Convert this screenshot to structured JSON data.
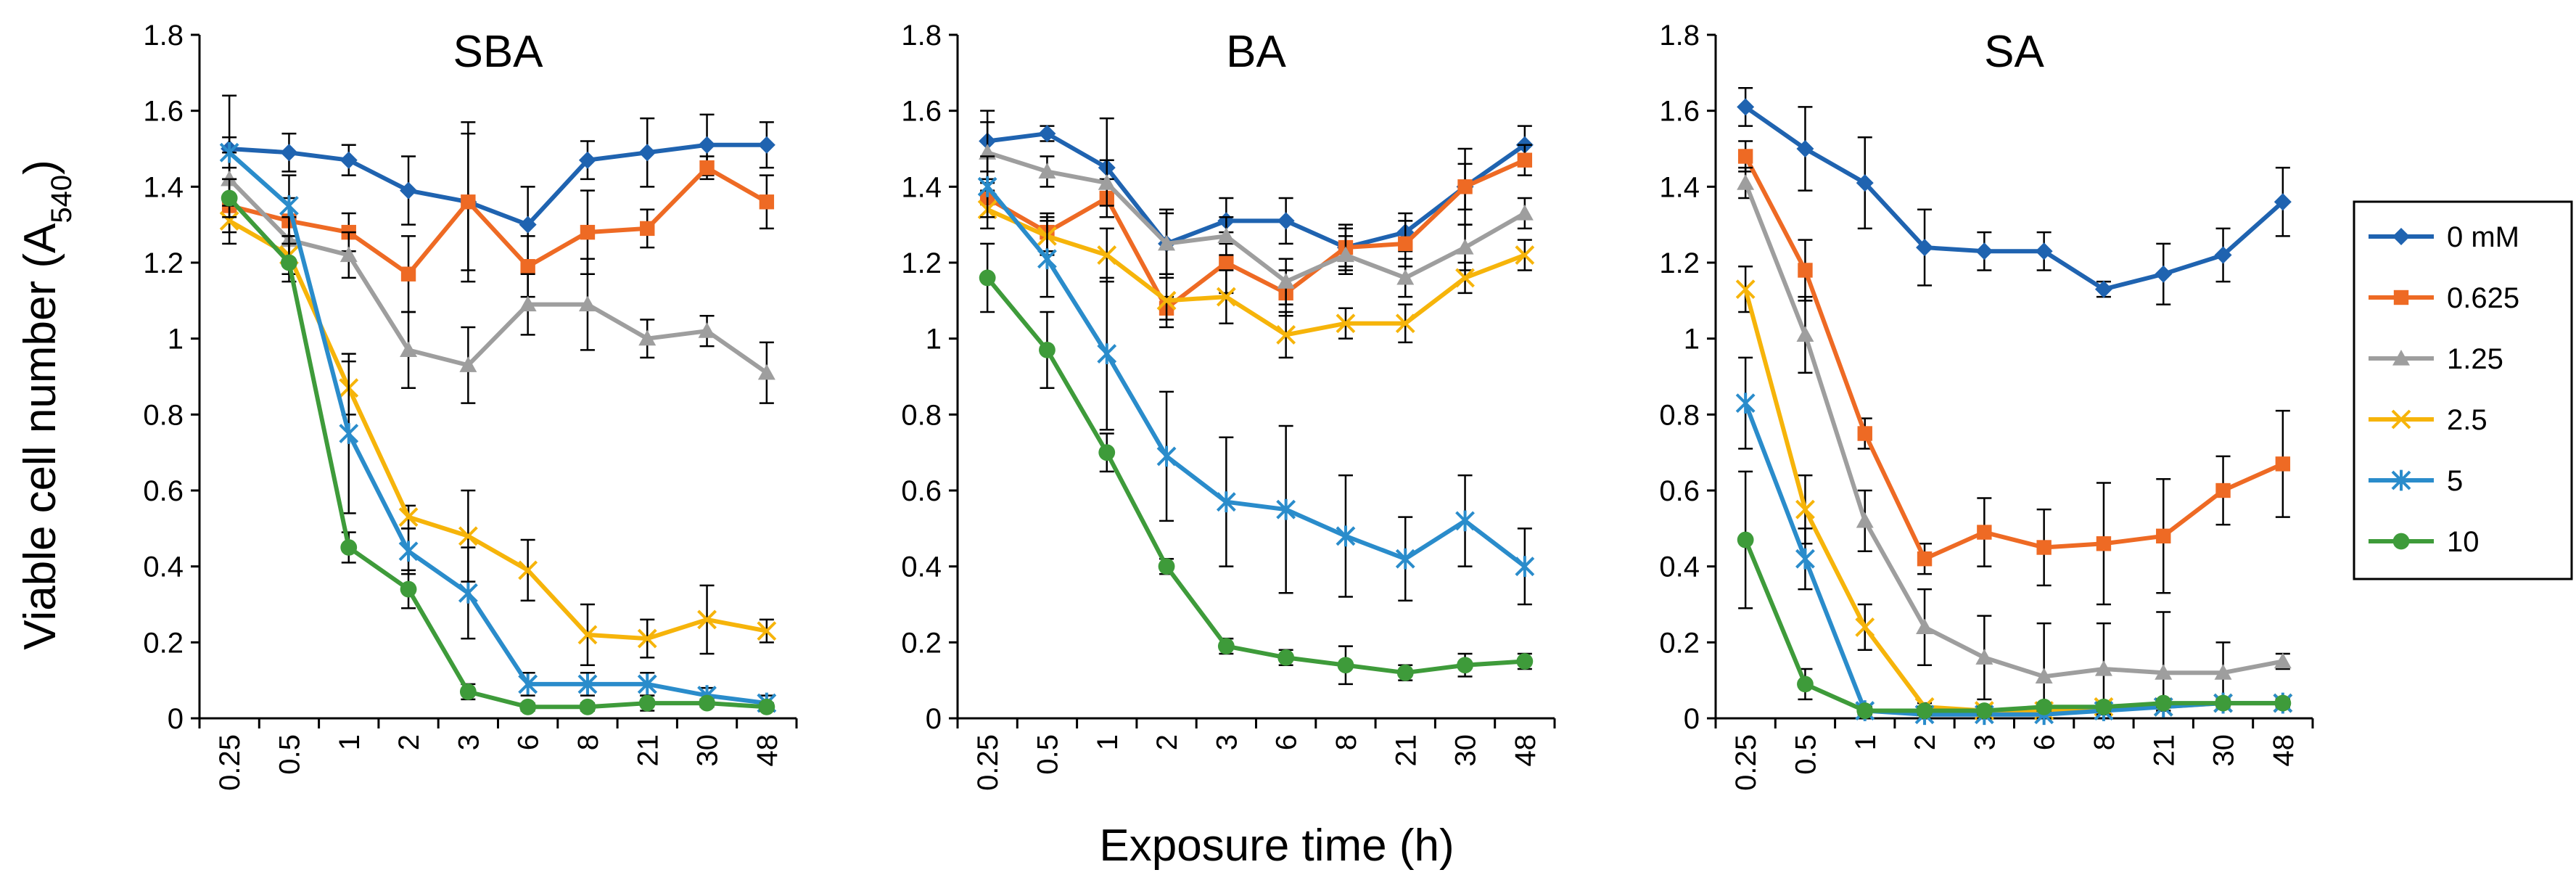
{
  "figure": {
    "xlabel": "Exposure time (h)",
    "ylabel_main": "Viable cell number (A",
    "ylabel_sub": "540",
    "ylabel_close": ")"
  },
  "legend": {
    "placement": "right",
    "entries": [
      {
        "label": "0 mM",
        "color": "#1F63B0",
        "marker": "diamond"
      },
      {
        "label": "0.625",
        "color": "#EE6A24",
        "marker": "square"
      },
      {
        "label": "1.25",
        "color": "#9E9E9E",
        "marker": "triangle"
      },
      {
        "label": "2.5",
        "color": "#F6B40A",
        "marker": "x"
      },
      {
        "label": "5",
        "color": "#2A8CCB",
        "marker": "star"
      },
      {
        "label": "10",
        "color": "#3E9B3A",
        "marker": "circle"
      }
    ]
  },
  "chart_data": [
    {
      "type": "line",
      "title": "SBA",
      "categories": [
        "0.25",
        "0.5",
        "1",
        "2",
        "3",
        "6",
        "8",
        "21",
        "30",
        "48"
      ],
      "xlabel": "Exposure time (h)",
      "ylabel": "Viable cell number (A540)",
      "ylim": [
        0,
        1.8
      ],
      "yticks": [
        "0",
        "0.2",
        "0.4",
        "0.6",
        "0.8",
        "1",
        "1.2",
        "1.4",
        "1.6",
        "1.8"
      ],
      "series": [
        {
          "name": "0 mM",
          "values": [
            1.5,
            1.49,
            1.47,
            1.39,
            1.36,
            1.3,
            1.47,
            1.49,
            1.51,
            1.51
          ],
          "errors": [
            0.14,
            0.05,
            0.04,
            0.09,
            0.21,
            0.1,
            0.05,
            0.09,
            0.08,
            0.06
          ]
        },
        {
          "name": "0.625",
          "values": [
            1.35,
            1.31,
            1.28,
            1.17,
            1.36,
            1.19,
            1.28,
            1.29,
            1.45,
            1.36
          ],
          "errors": [
            0.07,
            0.06,
            0.05,
            0.1,
            0.18,
            0.08,
            0.11,
            0.05,
            0.03,
            0.07
          ]
        },
        {
          "name": "1.25",
          "values": [
            1.42,
            1.26,
            1.22,
            0.97,
            0.93,
            1.09,
            1.09,
            1.0,
            1.02,
            0.91
          ],
          "errors": [
            0.07,
            0.06,
            0.06,
            0.1,
            0.1,
            0.08,
            0.12,
            0.05,
            0.04,
            0.08
          ]
        },
        {
          "name": "2.5",
          "values": [
            1.31,
            1.22,
            0.87,
            0.53,
            0.48,
            0.39,
            0.22,
            0.21,
            0.26,
            0.23
          ],
          "errors": [
            0.06,
            0.05,
            0.07,
            0.03,
            0.12,
            0.08,
            0.08,
            0.05,
            0.09,
            0.03
          ]
        },
        {
          "name": "5",
          "values": [
            1.49,
            1.35,
            0.75,
            0.44,
            0.33,
            0.09,
            0.09,
            0.09,
            0.06,
            0.04
          ],
          "errors": [
            0.04,
            0.08,
            0.21,
            0.06,
            0.12,
            0.03,
            0.03,
            0.03,
            0.02,
            0.02
          ]
        },
        {
          "name": "10",
          "values": [
            1.37,
            1.2,
            0.45,
            0.34,
            0.07,
            0.03,
            0.03,
            0.04,
            0.04,
            0.03
          ],
          "errors": [
            0.05,
            0.05,
            0.04,
            0.05,
            0.02,
            0.01,
            0.01,
            0.02,
            0.01,
            0.01
          ]
        }
      ]
    },
    {
      "type": "line",
      "title": "BA",
      "categories": [
        "0.25",
        "0.5",
        "1",
        "2",
        "3",
        "6",
        "8",
        "21",
        "30",
        "48"
      ],
      "xlabel": "Exposure time (h)",
      "ylabel": "",
      "ylim": [
        0,
        1.8
      ],
      "yticks": [
        "0",
        "0.2",
        "0.4",
        "0.6",
        "0.8",
        "1",
        "1.2",
        "1.4",
        "1.6",
        "1.8"
      ],
      "series": [
        {
          "name": "0 mM",
          "values": [
            1.52,
            1.54,
            1.45,
            1.25,
            1.31,
            1.31,
            1.24,
            1.28,
            1.4,
            1.51
          ],
          "errors": [
            0.08,
            0.02,
            0.13,
            0.09,
            0.06,
            0.06,
            0.05,
            0.05,
            0.1,
            0.05
          ]
        },
        {
          "name": "0.625",
          "values": [
            1.37,
            1.28,
            1.37,
            1.08,
            1.2,
            1.12,
            1.24,
            1.25,
            1.4,
            1.47
          ],
          "errors": [
            0.05,
            0.05,
            0.05,
            0.03,
            0.08,
            0.06,
            0.06,
            0.06,
            0.06,
            0.04
          ]
        },
        {
          "name": "1.25",
          "values": [
            1.49,
            1.44,
            1.41,
            1.25,
            1.27,
            1.15,
            1.22,
            1.16,
            1.24,
            1.33
          ],
          "errors": [
            0.08,
            0.04,
            0.06,
            0.08,
            0.05,
            0.06,
            0.05,
            0.05,
            0.06,
            0.04
          ]
        },
        {
          "name": "2.5",
          "values": [
            1.34,
            1.27,
            1.22,
            1.1,
            1.11,
            1.01,
            1.04,
            1.04,
            1.16,
            1.22
          ],
          "errors": [
            0.05,
            0.05,
            0.07,
            0.07,
            0.07,
            0.06,
            0.04,
            0.05,
            0.04,
            0.04
          ]
        },
        {
          "name": "5",
          "values": [
            1.4,
            1.21,
            0.96,
            0.69,
            0.57,
            0.55,
            0.48,
            0.42,
            0.52,
            0.4
          ],
          "errors": [
            0.08,
            0.1,
            0.2,
            0.17,
            0.17,
            0.22,
            0.16,
            0.11,
            0.12,
            0.1
          ]
        },
        {
          "name": "10",
          "values": [
            1.16,
            0.97,
            0.7,
            0.4,
            0.19,
            0.16,
            0.14,
            0.12,
            0.14,
            0.15
          ],
          "errors": [
            0.09,
            0.1,
            0.05,
            0.02,
            0.02,
            0.02,
            0.05,
            0.02,
            0.03,
            0.02
          ]
        }
      ]
    },
    {
      "type": "line",
      "title": "SA",
      "categories": [
        "0.25",
        "0.5",
        "1",
        "2",
        "3",
        "6",
        "8",
        "21",
        "30",
        "48"
      ],
      "xlabel": "Exposure time (h)",
      "ylabel": "",
      "ylim": [
        0,
        1.8
      ],
      "yticks": [
        "0",
        "0.2",
        "0.4",
        "0.6",
        "0.8",
        "1",
        "1.2",
        "1.4",
        "1.6",
        "1.8"
      ],
      "series": [
        {
          "name": "0 mM",
          "values": [
            1.61,
            1.5,
            1.41,
            1.24,
            1.23,
            1.23,
            1.13,
            1.17,
            1.22,
            1.36
          ],
          "errors": [
            0.05,
            0.11,
            0.12,
            0.1,
            0.05,
            0.05,
            0.02,
            0.08,
            0.07,
            0.09
          ]
        },
        {
          "name": "0.625",
          "values": [
            1.48,
            1.18,
            0.75,
            0.42,
            0.49,
            0.45,
            0.46,
            0.48,
            0.6,
            0.67
          ],
          "errors": [
            0.04,
            0.08,
            0.04,
            0.04,
            0.09,
            0.1,
            0.16,
            0.15,
            0.09,
            0.14
          ]
        },
        {
          "name": "1.25",
          "values": [
            1.41,
            1.01,
            0.52,
            0.24,
            0.16,
            0.11,
            0.13,
            0.12,
            0.12,
            0.15
          ],
          "errors": [
            0.04,
            0.1,
            0.08,
            0.1,
            0.11,
            0.14,
            0.12,
            0.16,
            0.08,
            0.02
          ]
        },
        {
          "name": "2.5",
          "values": [
            1.13,
            0.55,
            0.24,
            0.03,
            0.02,
            0.02,
            0.03,
            0.03,
            0.04,
            0.04
          ],
          "errors": [
            0.06,
            0.09,
            0.06,
            0.01,
            0.01,
            0.01,
            0.01,
            0.01,
            0.01,
            0.01
          ]
        },
        {
          "name": "5",
          "values": [
            0.83,
            0.42,
            0.02,
            0.01,
            0.01,
            0.01,
            0.02,
            0.03,
            0.04,
            0.04
          ],
          "errors": [
            0.12,
            0.08,
            0.01,
            0.01,
            0.01,
            0.01,
            0.01,
            0.01,
            0.01,
            0.01
          ]
        },
        {
          "name": "10",
          "values": [
            0.47,
            0.09,
            0.02,
            0.02,
            0.02,
            0.03,
            0.03,
            0.04,
            0.04,
            0.04
          ],
          "errors": [
            0.18,
            0.04,
            0.01,
            0.01,
            0.01,
            0.01,
            0.01,
            0.01,
            0.01,
            0.01
          ]
        }
      ]
    }
  ]
}
